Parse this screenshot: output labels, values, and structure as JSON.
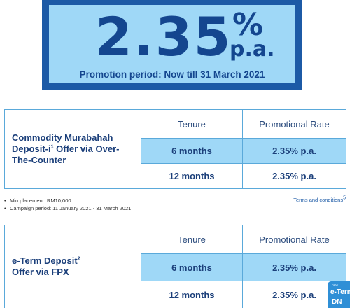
{
  "banner": {
    "rate_value": "2.35",
    "rate_symbol": "%",
    "rate_unit": "p.a.",
    "promotion_period": "Promotion period: Now till 31 March 2021"
  },
  "table1": {
    "product_line1": "Commodity Murabahah",
    "product_line2_pre": "Deposit-i",
    "product_sup": "1",
    "product_line2_post": " Offer via Over-",
    "product_line3": "The-Counter",
    "header_tenure": "Tenure",
    "header_rate": "Promotional Rate",
    "rows": [
      {
        "tenure": "6 months",
        "rate": "2.35% p.a."
      },
      {
        "tenure": "12 months",
        "rate": "2.35% p.a."
      }
    ]
  },
  "notes": {
    "min_placement": "Min placement: RM10,000",
    "campaign_period": "Campaign period: 11 January 2021 - 31 March 2021",
    "terms_label": "Terms and conditions",
    "terms_sup": "5"
  },
  "table2": {
    "product_line1_pre": "e-Term Deposit",
    "product_sup": "2",
    "product_line2": "Offer via FPX",
    "header_tenure": "Tenure",
    "header_rate": "Promotional Rate",
    "rows": [
      {
        "tenure": "6 months",
        "rate": "2.35% p.a."
      },
      {
        "tenure": "12 months",
        "rate": "2.35% p.a."
      }
    ]
  },
  "corner_badge": {
    "small_text": "new",
    "line1": "e-Term",
    "line2": "DN"
  },
  "colors": {
    "brand_dark": "#14468f",
    "brand_light": "#9fd8f7",
    "border": "#5aa9da"
  }
}
